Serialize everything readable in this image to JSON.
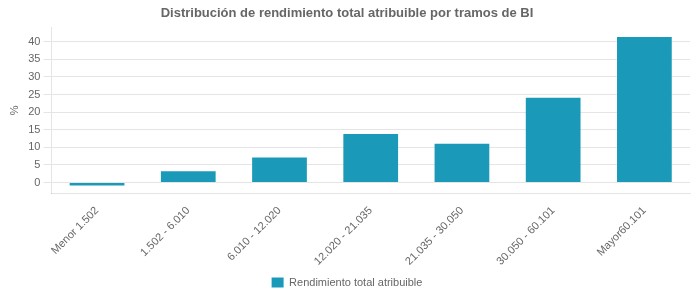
{
  "chart_data": {
    "type": "bar",
    "title": "Distribución de rendimiento total atribuible por tramos de BI",
    "categories": [
      "Menor 1.502",
      "1.502 - 6.010",
      "6.010 - 12.020",
      "12.020 - 21.035",
      "21.035 - 30.050",
      "30.050 - 60.101",
      "Mayor60.101"
    ],
    "series": [
      {
        "name": "Rendimiento total atribuible",
        "color": "#1a9ab8",
        "values": [
          -0.8,
          3.2,
          7.1,
          13.8,
          11.0,
          24.1,
          41.3
        ]
      }
    ],
    "ylabel": "%",
    "ylim": [
      -3,
      44
    ],
    "yticks": [
      0,
      5,
      10,
      15,
      20,
      25,
      30,
      35,
      40
    ],
    "grid": true,
    "legend": "bottom"
  }
}
